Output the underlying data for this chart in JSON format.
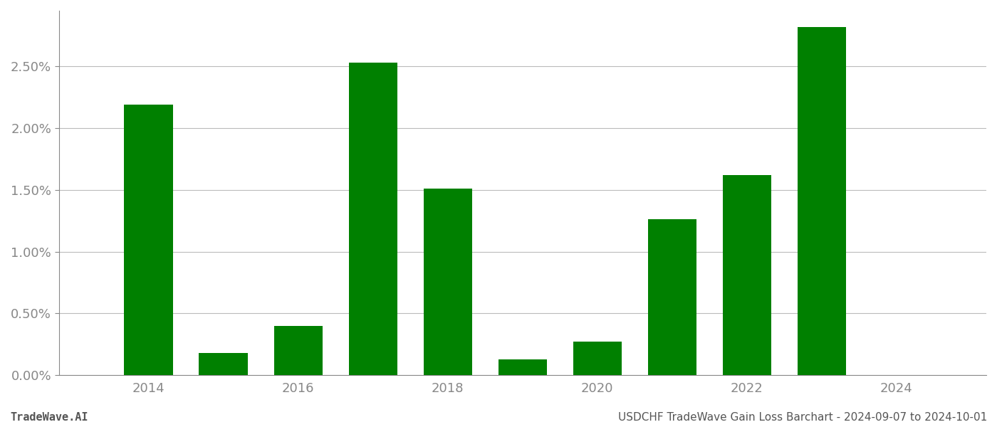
{
  "years": [
    2014,
    2015,
    2016,
    2017,
    2018,
    2019,
    2020,
    2021,
    2022,
    2023
  ],
  "values": [
    0.0219,
    0.0018,
    0.004,
    0.0253,
    0.0151,
    0.0013,
    0.0027,
    0.0126,
    0.0162,
    0.0282
  ],
  "bar_color": "#008000",
  "background_color": "#ffffff",
  "grid_color": "#bbbbbb",
  "axis_color": "#888888",
  "footnote_left": "TradeWave.AI",
  "footnote_right": "USDCHF TradeWave Gain Loss Barchart - 2024-09-07 to 2024-10-01",
  "footnote_color": "#555555",
  "ylim": [
    0,
    0.0295
  ],
  "yticks": [
    0.0,
    0.005,
    0.01,
    0.015,
    0.02,
    0.025
  ],
  "bar_width": 0.65,
  "xlim_left": 2012.8,
  "xlim_right": 2025.2
}
